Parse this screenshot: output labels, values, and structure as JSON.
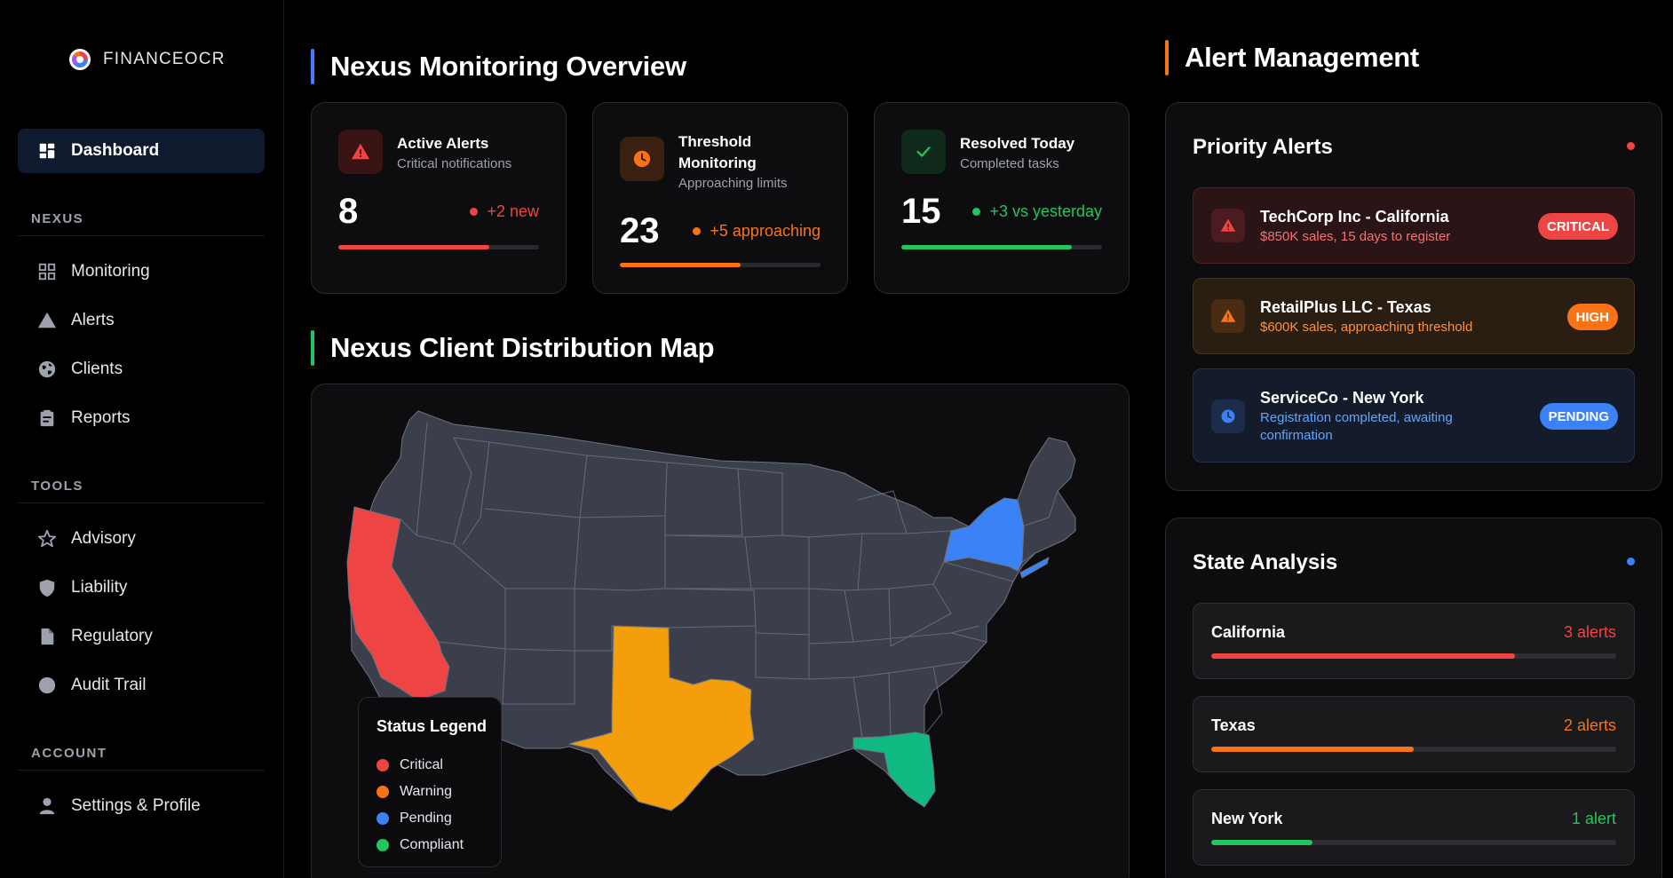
{
  "brand": {
    "name": "FINANCEOCR"
  },
  "sidebar": {
    "active": {
      "label": "Dashboard",
      "icon": "dashboard-icon"
    },
    "sections": [
      {
        "title": "NEXUS",
        "items": [
          {
            "label": "Monitoring",
            "icon": "grid-icon"
          },
          {
            "label": "Alerts",
            "icon": "warning-triangle-icon"
          },
          {
            "label": "Clients",
            "icon": "globe-icon"
          },
          {
            "label": "Reports",
            "icon": "clipboard-icon"
          }
        ]
      },
      {
        "title": "TOOLS",
        "items": [
          {
            "label": "Advisory",
            "icon": "star-icon"
          },
          {
            "label": "Liability",
            "icon": "shield-icon"
          },
          {
            "label": "Regulatory",
            "icon": "document-icon"
          },
          {
            "label": "Audit Trail",
            "icon": "circle-icon"
          }
        ]
      },
      {
        "title": "ACCOUNT",
        "items": [
          {
            "label": "Settings & Profile",
            "icon": "user-icon"
          }
        ]
      }
    ]
  },
  "overview": {
    "title": "Nexus Monitoring Overview",
    "accent": "#3b82f6",
    "cards": [
      {
        "title": "Active Alerts",
        "subtitle": "Critical notifications",
        "value": "8",
        "delta": "+2 new",
        "color": "#ef4444",
        "progress": 0.75,
        "icon": "alert-triangle-icon"
      },
      {
        "title": "Threshold Monitoring",
        "subtitle": "Approaching limits",
        "value": "23",
        "delta": "+5 approaching",
        "color": "#f97316",
        "progress": 0.6,
        "icon": "clock-icon"
      },
      {
        "title": "Resolved Today",
        "subtitle": "Completed tasks",
        "value": "15",
        "delta": "+3 vs yesterday",
        "color": "#22c55e",
        "progress": 0.85,
        "icon": "check-icon"
      }
    ]
  },
  "map": {
    "title": "Nexus Client Distribution Map",
    "accent": "#22c55e",
    "legend": {
      "title": "Status Legend",
      "items": [
        {
          "label": "Critical",
          "color": "#ef4444"
        },
        {
          "label": "Warning",
          "color": "#f97316"
        },
        {
          "label": "Pending",
          "color": "#3b82f6"
        },
        {
          "label": "Compliant",
          "color": "#22c55e"
        }
      ]
    },
    "state_colors": {
      "base": "#3b3f4c",
      "california": "#ef4444",
      "texas": "#f59e0b",
      "new_york": "#3b82f6",
      "florida": "#10b981"
    }
  },
  "alert_management": {
    "title": "Alert Management",
    "accent": "#f97316",
    "priority": {
      "title": "Priority Alerts",
      "dot_color": "#ef4444",
      "items": [
        {
          "title": "TechCorp Inc - California",
          "desc": "$850K sales, 15 days to register",
          "badge": "CRITICAL",
          "color": "#ef4444",
          "icon": "alert-triangle-icon"
        },
        {
          "title": "RetailPlus LLC - Texas",
          "desc": "$600K sales, approaching threshold",
          "badge": "HIGH",
          "color": "#f97316",
          "icon": "alert-triangle-icon"
        },
        {
          "title": "ServiceCo - New York",
          "desc": "Registration completed, awaiting confirmation",
          "badge": "PENDING",
          "color": "#3b82f6",
          "icon": "clock-icon"
        }
      ]
    },
    "state_analysis": {
      "title": "State Analysis",
      "dot_color": "#3b82f6",
      "rows": [
        {
          "state": "California",
          "count": "3 alerts",
          "color": "#ef4444",
          "progress": 0.75
        },
        {
          "state": "Texas",
          "count": "2 alerts",
          "color": "#f97316",
          "progress": 0.5
        },
        {
          "state": "New York",
          "count": "1 alert",
          "color": "#22c55e",
          "progress": 0.25
        }
      ]
    }
  }
}
